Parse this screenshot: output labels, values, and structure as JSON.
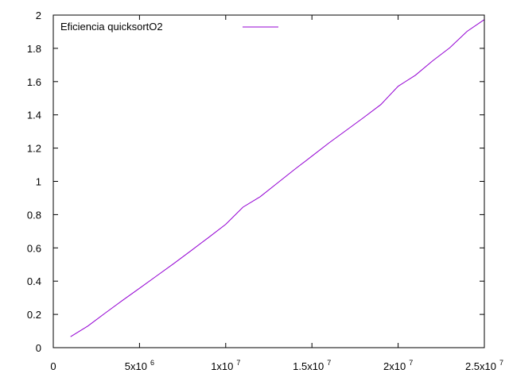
{
  "chart_data": {
    "type": "line",
    "title": "",
    "xlabel": "",
    "ylabel": "",
    "xlim": [
      0,
      25000000
    ],
    "ylim": [
      0,
      2
    ],
    "grid": false,
    "legend_position": "top-left",
    "x_ticks": [
      {
        "value": 0,
        "mantissa": "0",
        "exponent": ""
      },
      {
        "value": 5000000,
        "mantissa": "5x10",
        "exponent": "6"
      },
      {
        "value": 10000000,
        "mantissa": "1x10",
        "exponent": "7"
      },
      {
        "value": 15000000,
        "mantissa": "1.5x10",
        "exponent": "7"
      },
      {
        "value": 20000000,
        "mantissa": "2x10",
        "exponent": "7"
      },
      {
        "value": 25000000,
        "mantissa": "2.5x10",
        "exponent": "7"
      }
    ],
    "y_ticks": [
      {
        "value": 0,
        "label": "0"
      },
      {
        "value": 0.2,
        "label": "0.2"
      },
      {
        "value": 0.4,
        "label": "0.4"
      },
      {
        "value": 0.6,
        "label": "0.6"
      },
      {
        "value": 0.8,
        "label": "0.8"
      },
      {
        "value": 1,
        "label": "1"
      },
      {
        "value": 1.2,
        "label": "1.2"
      },
      {
        "value": 1.4,
        "label": "1.4"
      },
      {
        "value": 1.6,
        "label": "1.6"
      },
      {
        "value": 1.8,
        "label": "1.8"
      },
      {
        "value": 2,
        "label": "2"
      }
    ],
    "series": [
      {
        "name": "Eficiencia quicksortO2",
        "color": "#9400d3",
        "x": [
          1000000,
          2000000,
          3000000,
          4000000,
          5000000,
          6000000,
          7000000,
          8000000,
          9000000,
          10000000,
          11000000,
          12000000,
          13000000,
          14000000,
          15000000,
          16000000,
          17000000,
          18000000,
          19000000,
          20000000,
          21000000,
          22000000,
          23000000,
          24000000,
          25000000
        ],
        "y": [
          0.066,
          0.13,
          0.207,
          0.283,
          0.357,
          0.432,
          0.507,
          0.584,
          0.662,
          0.742,
          0.845,
          0.908,
          0.99,
          1.072,
          1.152,
          1.232,
          1.308,
          1.384,
          1.462,
          1.572,
          1.638,
          1.725,
          1.804,
          1.902,
          1.973
        ]
      }
    ]
  }
}
